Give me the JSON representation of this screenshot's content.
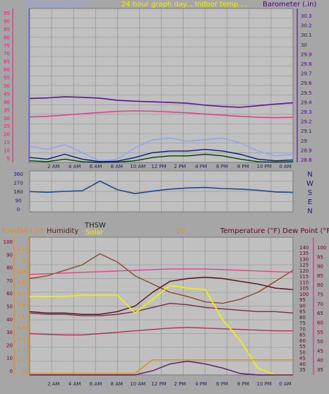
{
  "colors": {
    "background": "#a6a6a6",
    "plot": "#c0c0c0",
    "grid": "#8a8a8a",
    "wind_avg": "#001c8a",
    "wind_gust": "#8fa0ff",
    "wind_speed": "#004400",
    "barometer": "#5a1496",
    "temp_pink": "#e0408a",
    "dir": "#1a4c90",
    "rain": "#f08a00",
    "humidity": "#8a4a24",
    "uv": "#5a1a5a",
    "temperature": "#5a0a14",
    "dew": "#b03050",
    "thsw": "#7a2a4a",
    "solar": "#f0f000",
    "axis_pink": "#e0207a",
    "axis_orange": "#f08a00",
    "axis_purple": "#4a0080",
    "axis_wine": "#6a0020"
  },
  "chart_data": [
    {
      "type": "line",
      "x_ticks": [
        "2 AM",
        "4 AM",
        "6 AM",
        "8 AM",
        "10 AM",
        "12 PM",
        "2 PM",
        "4 PM",
        "6 PM",
        "8 PM",
        "10 PM",
        "0 AM"
      ],
      "header": {
        "left": "Windspeed (mph)",
        "center": "24 hour graph day... Indoor temp ...",
        "right": "Barometer (.in)"
      },
      "ylim_left": [
        0,
        95
      ],
      "ylim_right": [
        29.8,
        30.3
      ],
      "left_ticks": [
        "95",
        "90",
        "85",
        "80",
        "75",
        "70",
        "65",
        "60",
        "55",
        "50",
        "45",
        "40",
        "35",
        "30",
        "25",
        "20",
        "15",
        "10",
        "5"
      ],
      "right_ticks": [
        "30.3",
        "30.2",
        "30.1",
        "30",
        "29.9",
        "29.8",
        "29.7",
        "29.6",
        "29.5",
        "29.4",
        "29.3",
        "29.2",
        "29.1",
        "29",
        "28.9",
        "28.8"
      ],
      "series": [
        {
          "key": "barometer",
          "values": [
            39.5,
            39.8,
            40.5,
            40.2,
            39.6,
            38.3,
            37.8,
            37.4,
            37,
            36.5,
            35.3,
            34.5,
            34,
            35,
            36,
            36.8
          ]
        },
        {
          "key": "temp_pink",
          "values": [
            28,
            28.4,
            29.2,
            30,
            30.8,
            31.5,
            31.8,
            31.6,
            31.1,
            30.6,
            29.8,
            29.1,
            28.4,
            27.9,
            27.6,
            27.8
          ]
        },
        {
          "key": "wind_gust",
          "values": [
            10,
            8,
            11,
            6,
            1,
            2,
            9,
            14,
            15,
            13,
            14,
            15,
            12,
            7,
            4,
            5
          ]
        },
        {
          "key": "wind_avg",
          "values": [
            3,
            2,
            5,
            2,
            0.5,
            0.8,
            3,
            6,
            7,
            7,
            8,
            7,
            5,
            2,
            1,
            1.5
          ]
        },
        {
          "key": "wind_speed",
          "values": [
            1,
            0.5,
            2,
            0.5,
            0,
            0.2,
            1,
            3,
            4,
            4,
            5,
            4,
            2,
            0.5,
            0.2,
            0.5
          ]
        }
      ]
    },
    {
      "type": "line",
      "left_ticks": [
        "360",
        "270",
        "180",
        "90",
        "0"
      ],
      "right_ticks": [
        "N",
        "W",
        "S",
        "E",
        "N"
      ],
      "ylim": [
        0,
        360
      ],
      "series": [
        {
          "key": "dir",
          "values": [
            178,
            172,
            180,
            185,
            270,
            195,
            160,
            182,
            200,
            210,
            215,
            205,
            200,
            190,
            175,
            170
          ]
        }
      ]
    },
    {
      "type": "line",
      "x_ticks": [
        "2 AM",
        "4 AM",
        "6 AM",
        "8 AM",
        "10 AM",
        "12 PM",
        "2 PM",
        "4 PM",
        "6 PM",
        "8 PM",
        "10 PM",
        "0 AM"
      ],
      "header": {
        "rain": "Rainfall (.in)",
        "humidity": "Humidity",
        "thsw": "THSW",
        "solar": "Solar",
        "uv": "UV",
        "temp": "Temperature (°F) Dew Point (°F)"
      },
      "rain_ticks": [
        "1",
        "0.9",
        "0.8",
        "0.7",
        "0.6",
        "0.5",
        "0.4",
        "0.3",
        "0.2",
        "0.1",
        "0"
      ],
      "humidity_ticks": [
        "100",
        "90",
        "80",
        "70",
        "60",
        "50",
        "40",
        "30",
        "20",
        "10",
        "0"
      ],
      "uv_ticks": [
        "1.1",
        "1",
        "0.9",
        "0.8",
        "0.7",
        "0.6",
        "0.5",
        "0.4",
        "0.3",
        "0.2",
        "0.1",
        "0"
      ],
      "temp_ticks": [
        "140",
        "135",
        "130",
        "125",
        "120",
        "115",
        "110",
        "105",
        "100",
        "95",
        "90",
        "85",
        "80",
        "75",
        "70",
        "65",
        "60",
        "55",
        "50",
        "45",
        "40",
        "35"
      ],
      "dew_ticks": [
        "100",
        "95",
        "90",
        "85",
        "80",
        "75",
        "70",
        "65",
        "60",
        "55",
        "50",
        "45",
        "40",
        "35"
      ],
      "series": [
        {
          "key": "humidity",
          "values": [
            70,
            72,
            76,
            80,
            88,
            82,
            72,
            66,
            60,
            57,
            53,
            52,
            55,
            60,
            68,
            76
          ]
        },
        {
          "key": "temp_pink",
          "values": [
            73,
            73.5,
            74,
            74.5,
            75,
            75.5,
            76,
            76.5,
            77,
            77,
            77,
            76.5,
            76,
            75.5,
            75,
            74.5
          ]
        },
        {
          "key": "thsw",
          "values": [
            45,
            44,
            44,
            43,
            43,
            44,
            46,
            49,
            52,
            51,
            49,
            48,
            47,
            46,
            46,
            45
          ]
        },
        {
          "key": "dew",
          "values": [
            30,
            29.5,
            29,
            29,
            30,
            31,
            32,
            33,
            34,
            34.5,
            34,
            33.5,
            33,
            32.5,
            32,
            32
          ]
        },
        {
          "key": "temperature",
          "values": [
            46,
            45,
            45,
            44,
            44,
            46,
            50,
            60,
            68,
            70,
            71,
            70,
            68,
            66,
            63,
            62
          ]
        },
        {
          "key": "solar",
          "values": [
            57,
            57,
            57,
            58,
            58,
            58,
            45,
            55,
            65,
            63,
            62,
            40,
            25,
            5,
            0,
            0
          ]
        },
        {
          "key": "uv",
          "values": [
            0,
            0,
            0,
            0,
            0,
            0,
            0,
            3,
            8,
            10,
            8,
            5,
            1,
            0,
            0,
            0
          ]
        },
        {
          "key": "rain",
          "values": [
            1,
            1,
            1,
            1,
            1,
            1,
            1,
            11,
            11,
            11,
            11,
            11,
            11,
            11,
            11,
            11
          ]
        }
      ]
    }
  ]
}
